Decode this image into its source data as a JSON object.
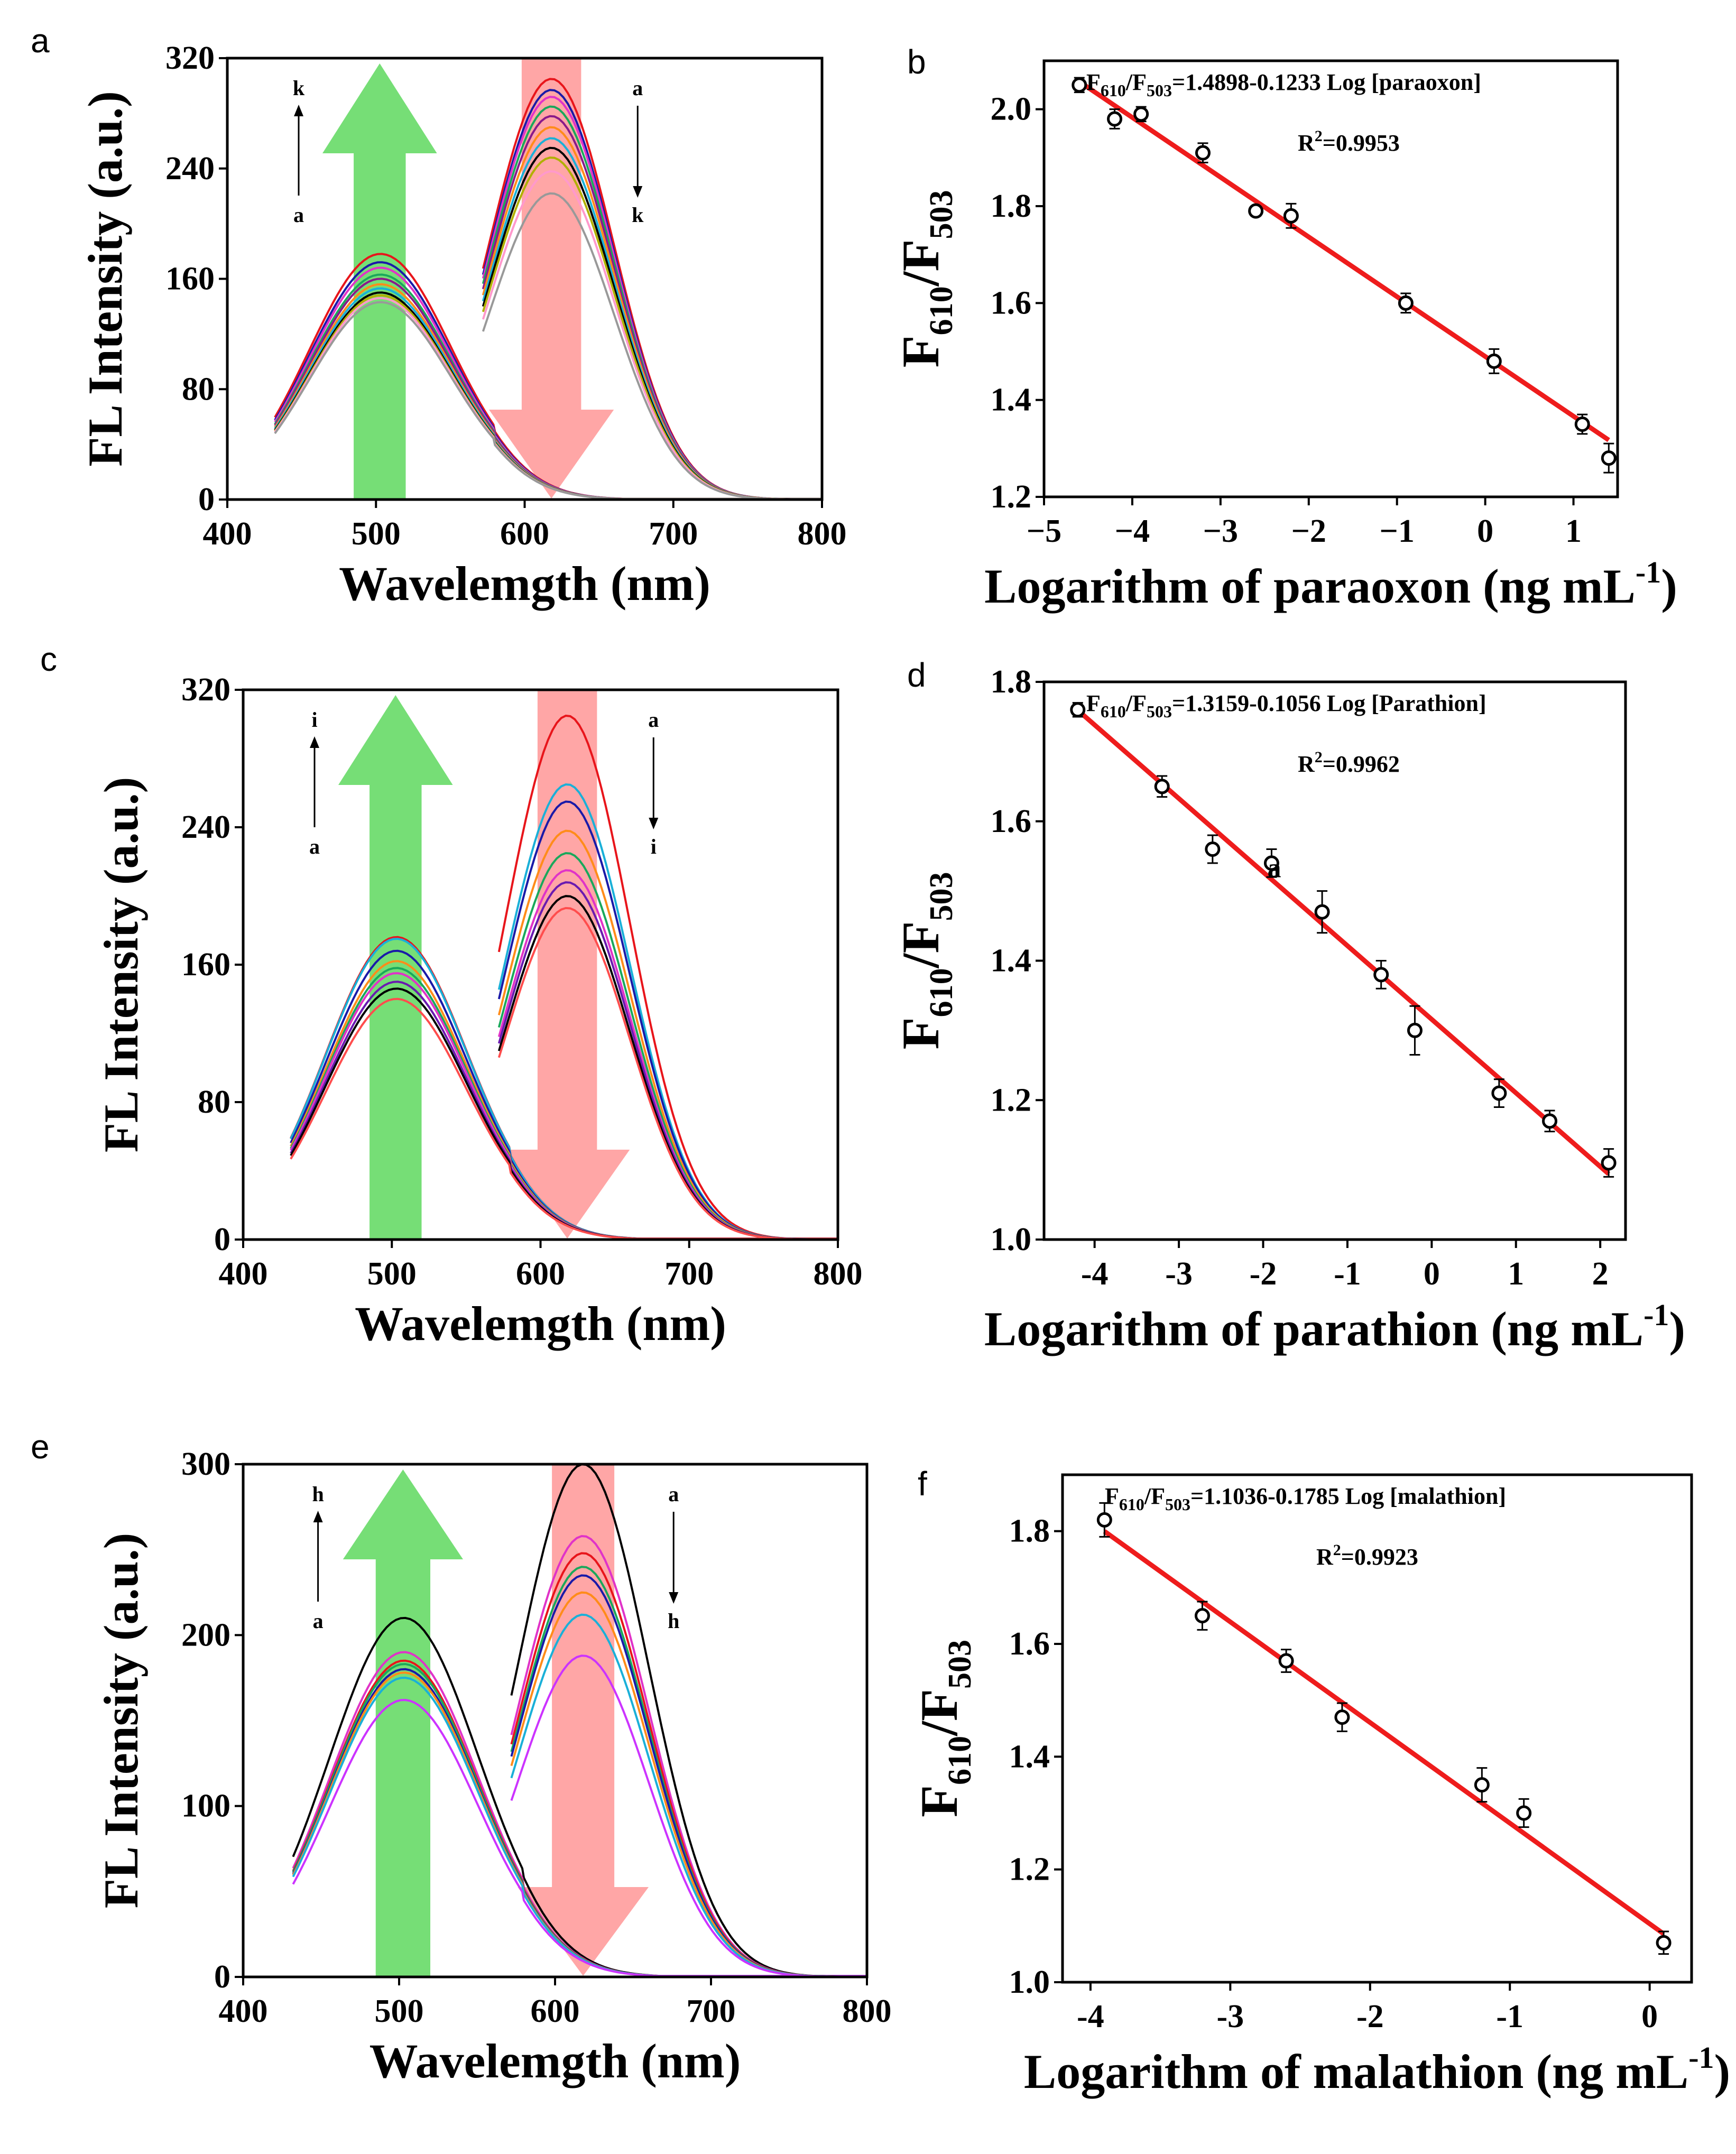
{
  "panels": [
    {
      "letter": "a"
    },
    {
      "letter": "b"
    },
    {
      "letter": "c"
    },
    {
      "letter": "d"
    },
    {
      "letter": "e"
    },
    {
      "letter": "f"
    }
  ],
  "chart_data": [
    {
      "id": "a",
      "type": "line",
      "title": "",
      "xlabel": "Wavelemgth (nm)",
      "ylabel": "FL Intensity (a.u.)",
      "xlim": [
        400,
        800
      ],
      "ylim": [
        0,
        320
      ],
      "xticks": [
        400,
        500,
        600,
        700,
        800
      ],
      "yticks": [
        0,
        80,
        160,
        240,
        320
      ],
      "green_peaks": [
        178,
        172,
        168,
        163,
        160,
        156,
        153,
        150,
        148,
        146,
        143
      ],
      "red_peaks": [
        305,
        297,
        292,
        285,
        278,
        270,
        262,
        255,
        248,
        238,
        222
      ],
      "colors": [
        "#e8151b",
        "#1a1aa8",
        "#e033c8",
        "#1aa85b",
        "#8a1a8a",
        "#ff8c1a",
        "#1ab0d8",
        "#000000",
        "#b0b000",
        "#ff99cc",
        "#999999"
      ],
      "arrow_left": {
        "top": "k",
        "bottom": "a"
      },
      "arrow_right": {
        "top": "a",
        "bottom": "k"
      }
    },
    {
      "id": "b",
      "type": "scatter",
      "xlabel": "Logarithm of paraoxon (ng mL",
      "xlabel_sup": "-1",
      "xlabel_end": ")",
      "ylabel_main": "F",
      "ylabel_sub1": "610",
      "ylabel_slash": "/F",
      "ylabel_sub2": "503",
      "xlim": [
        -5,
        1.5
      ],
      "ylim": [
        1.2,
        2.1
      ],
      "xticks": [
        -5,
        -4,
        -3,
        -2,
        -1,
        0,
        1
      ],
      "xtick_labels": [
        "−5",
        "−4",
        "−3",
        "−2",
        "−1",
        "0",
        "1"
      ],
      "yticks": [
        1.2,
        1.4,
        1.6,
        1.8,
        2.0
      ],
      "ytick_labels": [
        "1.2",
        "1.4",
        "1.6",
        "1.8",
        "2.0"
      ],
      "x": [
        -4.6,
        -4.2,
        -3.9,
        -3.2,
        -2.6,
        -2.2,
        -0.9,
        0.1,
        1.1,
        1.4
      ],
      "y": [
        2.05,
        1.98,
        1.99,
        1.91,
        1.79,
        1.78,
        1.6,
        1.48,
        1.35,
        1.28
      ],
      "err": [
        0.015,
        0.02,
        0.015,
        0.02,
        0.01,
        0.025,
        0.02,
        0.025,
        0.02,
        0.03
      ],
      "fit": {
        "intercept": 1.4898,
        "slope": -0.1233
      },
      "eq_text": "F610/F503=1.4898-0.1233 Log [paraoxon]",
      "eq_parts": [
        "F",
        "610",
        "/F",
        "503",
        "=1.4898-0.1233 Log [paraoxon]"
      ],
      "r2": "R2=0.9953",
      "r2_parts": [
        "R",
        "2",
        "=0.9953"
      ]
    },
    {
      "id": "c",
      "type": "line",
      "xlabel": "Wavelemgth (nm)",
      "ylabel": "FL Intensity (a.u.)",
      "xlim": [
        400,
        800
      ],
      "ylim": [
        0,
        320
      ],
      "xticks": [
        400,
        500,
        600,
        700,
        800
      ],
      "yticks": [
        0,
        80,
        160,
        240,
        320
      ],
      "green_peaks": [
        176,
        175,
        168,
        162,
        158,
        155,
        150,
        146,
        140
      ],
      "red_peaks": [
        305,
        265,
        255,
        238,
        225,
        215,
        208,
        200,
        193
      ],
      "colors": [
        "#e8151b",
        "#1ab0d8",
        "#1a1aa8",
        "#ff8c1a",
        "#1aa85b",
        "#e033c8",
        "#6a1ab0",
        "#000000",
        "#ff4d4d"
      ],
      "arrow_left": {
        "top": "i",
        "bottom": "a"
      },
      "arrow_right": {
        "top": "a",
        "bottom": "i"
      }
    },
    {
      "id": "d",
      "type": "scatter",
      "xlabel": "Logarithm of parathion (ng mL",
      "xlabel_sup": "-1",
      "xlabel_end": ")",
      "ylabel_main": "F",
      "ylabel_sub1": "610",
      "ylabel_slash": "/F",
      "ylabel_sub2": "503",
      "xlim": [
        -4.6,
        2.3
      ],
      "ylim": [
        1.0,
        1.8
      ],
      "xticks": [
        -4,
        -3,
        -2,
        -1,
        0,
        1,
        2
      ],
      "xtick_labels": [
        "-4",
        "-3",
        "-2",
        "-1",
        "0",
        "1",
        "2"
      ],
      "yticks": [
        1.0,
        1.2,
        1.4,
        1.6,
        1.8
      ],
      "ytick_labels": [
        "1.0",
        "1.2",
        "1.4",
        "1.6",
        "1.8"
      ],
      "x": [
        -4.2,
        -3.2,
        -2.6,
        -1.9,
        -1.3,
        -0.6,
        -0.2,
        0.8,
        1.4,
        2.1
      ],
      "y": [
        1.76,
        1.65,
        1.56,
        1.54,
        1.47,
        1.38,
        1.3,
        1.21,
        1.17,
        1.11
      ],
      "err": [
        0.01,
        0.015,
        0.02,
        0.02,
        0.03,
        0.02,
        0.035,
        0.02,
        0.015,
        0.02
      ],
      "fit": {
        "intercept": 1.3159,
        "slope": -0.1056
      },
      "eq_text": "F610/F503=1.3159-0.1056 Log [Parathion]",
      "eq_parts": [
        "F",
        "610",
        "/F",
        "503",
        "=1.3159-0.1056 Log [Parathion]"
      ],
      "r2": "R2=0.9962",
      "r2_parts": [
        "R",
        "2",
        "=0.9962"
      ],
      "annotation": "a"
    },
    {
      "id": "e",
      "type": "line",
      "xlabel": "Wavelemgth (nm)",
      "ylabel": "FL Intensity (a.u.)",
      "xlim": [
        400,
        800
      ],
      "ylim": [
        0,
        300
      ],
      "xticks": [
        400,
        500,
        600,
        700,
        800
      ],
      "yticks": [
        0,
        100,
        200,
        300
      ],
      "green_peaks": [
        210,
        190,
        185,
        183,
        180,
        178,
        175,
        162
      ],
      "red_peaks": [
        300,
        258,
        248,
        240,
        235,
        225,
        212,
        188
      ],
      "colors": [
        "#000000",
        "#e033c8",
        "#e8151b",
        "#1aa85b",
        "#1a1aa8",
        "#ff8c1a",
        "#1ab0d8",
        "#cc33ff"
      ],
      "arrow_left": {
        "top": "h",
        "bottom": "a"
      },
      "arrow_right": {
        "top": "a",
        "bottom": "h"
      }
    },
    {
      "id": "f",
      "type": "scatter",
      "xlabel": "Logarithm of malathion (ng mL",
      "xlabel_sup": "-1",
      "xlabel_end": ")",
      "ylabel_main": "F",
      "ylabel_sub1": "610",
      "ylabel_slash": "/F",
      "ylabel_sub2": "503",
      "xlim": [
        -4.2,
        0.3
      ],
      "ylim": [
        1.0,
        1.9
      ],
      "xticks": [
        -4,
        -3,
        -2,
        -1,
        0
      ],
      "xtick_labels": [
        "-4",
        "-3",
        "-2",
        "-1",
        "0"
      ],
      "yticks": [
        1.0,
        1.2,
        1.4,
        1.6,
        1.8
      ],
      "ytick_labels": [
        "1.0",
        "1.2",
        "1.4",
        "1.6",
        "1.8"
      ],
      "x": [
        -3.9,
        -3.2,
        -2.6,
        -2.2,
        -1.2,
        -0.9,
        0.1
      ],
      "y": [
        1.82,
        1.65,
        1.57,
        1.47,
        1.35,
        1.3,
        1.07
      ],
      "err": [
        0.03,
        0.025,
        0.02,
        0.025,
        0.03,
        0.025,
        0.02
      ],
      "fit": {
        "intercept": 1.1036,
        "slope": -0.1785
      },
      "eq_text": "F610/F503=1.1036-0.1785 Log [malathion]",
      "eq_parts": [
        "F",
        "610",
        "/F",
        "503",
        "=1.1036-0.1785 Log [malathion]"
      ],
      "r2": "R2=0.9923",
      "r2_parts": [
        "R",
        "2",
        "=0.9923"
      ]
    }
  ]
}
